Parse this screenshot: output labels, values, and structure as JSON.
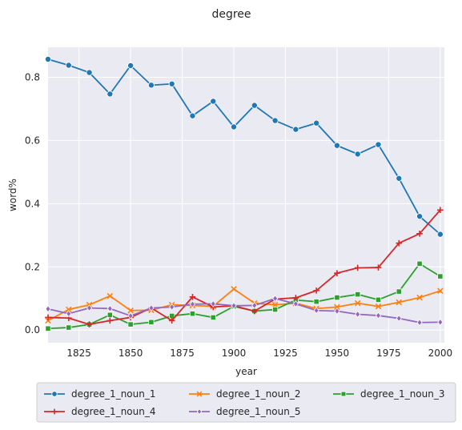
{
  "chart_data": {
    "type": "line",
    "title": "degree",
    "xlabel": "year",
    "ylabel": "word%",
    "xlim": [
      1810,
      2002
    ],
    "ylim": [
      -0.04,
      0.895
    ],
    "x_ticks": [
      1825,
      1850,
      1875,
      1900,
      1925,
      1950,
      1975,
      2000
    ],
    "y_ticks": [
      0.0,
      0.2,
      0.4,
      0.6,
      0.8
    ],
    "y_tick_labels": [
      "0.0",
      "0.2",
      "0.4",
      "0.6",
      "0.8"
    ],
    "grid": true,
    "legend_position": "bottom",
    "x": [
      1810,
      1820,
      1830,
      1840,
      1850,
      1860,
      1870,
      1880,
      1890,
      1900,
      1910,
      1920,
      1930,
      1940,
      1950,
      1960,
      1970,
      1980,
      1990,
      2000
    ],
    "series": [
      {
        "name": "degree_1_noun_1",
        "color": "#1f77b4",
        "marker": "circle",
        "values": [
          0.857,
          0.838,
          0.815,
          0.747,
          0.837,
          0.775,
          0.779,
          0.678,
          0.724,
          0.643,
          0.711,
          0.663,
          0.635,
          0.655,
          0.584,
          0.557,
          0.587,
          0.48,
          0.36,
          0.303
        ]
      },
      {
        "name": "degree_1_noun_2",
        "color": "#ff7f0e",
        "marker": "x",
        "values": [
          0.03,
          0.065,
          0.08,
          0.108,
          0.062,
          0.063,
          0.08,
          0.078,
          0.075,
          0.13,
          0.085,
          0.08,
          0.085,
          0.068,
          0.073,
          0.085,
          0.075,
          0.088,
          0.103,
          0.124
        ]
      },
      {
        "name": "degree_1_noun_3",
        "color": "#2ca02c",
        "marker": "square",
        "values": [
          0.005,
          0.008,
          0.018,
          0.048,
          0.018,
          0.025,
          0.045,
          0.052,
          0.04,
          0.075,
          0.06,
          0.065,
          0.095,
          0.09,
          0.103,
          0.113,
          0.096,
          0.122,
          0.21,
          0.17
        ]
      },
      {
        "name": "degree_1_noun_4",
        "color": "#d62728",
        "marker": "plus",
        "values": [
          0.04,
          0.038,
          0.018,
          0.03,
          0.04,
          0.07,
          0.03,
          0.105,
          0.073,
          0.077,
          0.06,
          0.098,
          0.102,
          0.125,
          0.18,
          0.197,
          0.198,
          0.275,
          0.305,
          0.38
        ]
      },
      {
        "name": "degree_1_noun_5",
        "color": "#9467bd",
        "marker": "diamond",
        "values": [
          0.067,
          0.052,
          0.07,
          0.068,
          0.045,
          0.07,
          0.073,
          0.082,
          0.083,
          0.077,
          0.078,
          0.1,
          0.083,
          0.062,
          0.06,
          0.05,
          0.046,
          0.037,
          0.024,
          0.025
        ]
      }
    ]
  }
}
